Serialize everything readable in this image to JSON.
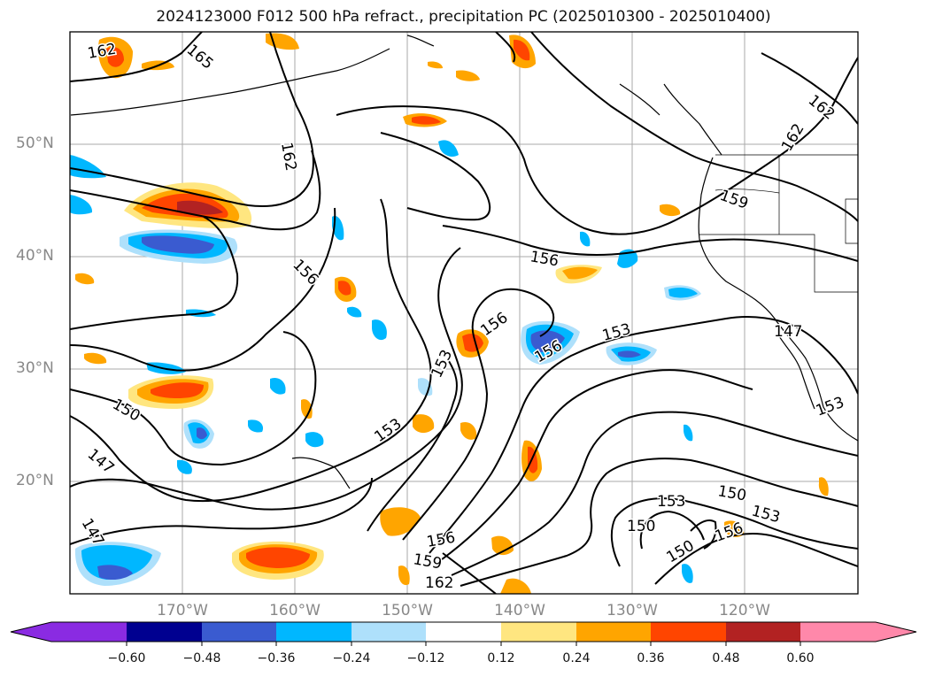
{
  "title": "2024123000 F012 500 hPa refract., precipitation PC (2025010300 - 2025010400)",
  "map": {
    "lon_range": [
      -180,
      -110
    ],
    "lat_range": [
      10,
      60
    ],
    "lat_ticks": [
      {
        "value": 20,
        "label": "20°N"
      },
      {
        "value": 30,
        "label": "30°N"
      },
      {
        "value": 40,
        "label": "40°N"
      },
      {
        "value": 50,
        "label": "50°N"
      }
    ],
    "lon_ticks": [
      {
        "value": -170,
        "label": "170°W"
      },
      {
        "value": -160,
        "label": "160°W"
      },
      {
        "value": -150,
        "label": "150°W"
      },
      {
        "value": -140,
        "label": "140°W"
      },
      {
        "value": -130,
        "label": "130°W"
      },
      {
        "value": -120,
        "label": "120°W"
      }
    ],
    "contour_labels": [
      "162",
      "165",
      "162",
      "162",
      "162",
      "159",
      "156",
      "156",
      "156",
      "156",
      "153",
      "153",
      "153",
      "153",
      "150",
      "150",
      "150",
      "150",
      "147",
      "147",
      "147",
      "153",
      "153",
      "156",
      "156",
      "159",
      "162"
    ]
  },
  "colorbar": {
    "ticks": [
      "−0.60",
      "−0.48",
      "−0.36",
      "−0.24",
      "−0.12",
      "0.12",
      "0.24",
      "0.36",
      "0.48",
      "0.60"
    ],
    "colors": {
      "lt_neg060": "#8a2be2",
      "neg060_048": "#000090",
      "neg048_036": "#3a5bd0",
      "neg036_024": "#00b7ff",
      "neg024_012": "#aee0fb",
      "neutral": "#ffffff",
      "pos012_024": "#ffe680",
      "pos024_036": "#ffa500",
      "pos036_048": "#ff4500",
      "pos048_060": "#b22222",
      "gt_060": "#ff88aa"
    }
  }
}
